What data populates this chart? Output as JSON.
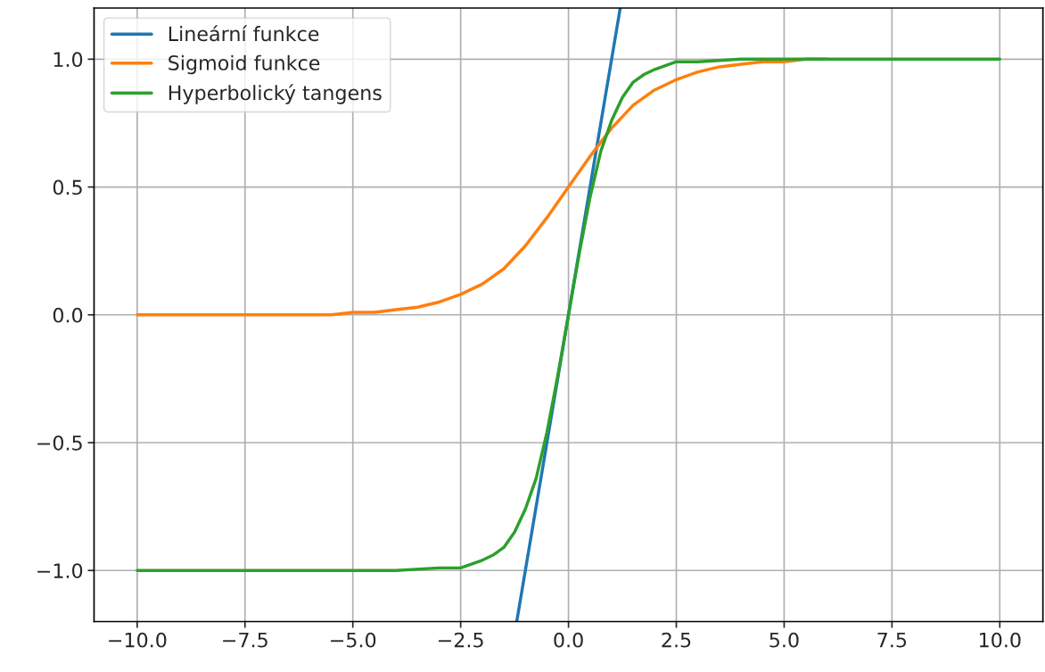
{
  "chart_data": {
    "type": "line",
    "xlim": [
      -11,
      11
    ],
    "ylim": [
      -1.2,
      1.2
    ],
    "xticks": [
      {
        "value": -10,
        "label": "−10.0"
      },
      {
        "value": -7.5,
        "label": "−7.5"
      },
      {
        "value": -5,
        "label": "−5.0"
      },
      {
        "value": -2.5,
        "label": "−2.5"
      },
      {
        "value": 0,
        "label": "0.0"
      },
      {
        "value": 2.5,
        "label": "2.5"
      },
      {
        "value": 5,
        "label": "5.0"
      },
      {
        "value": 7.5,
        "label": "7.5"
      },
      {
        "value": 10,
        "label": "10.0"
      }
    ],
    "yticks": [
      {
        "value": -1,
        "label": "−1.0"
      },
      {
        "value": -0.5,
        "label": "−0.5"
      },
      {
        "value": 0,
        "label": "0.0"
      },
      {
        "value": 0.5,
        "label": "0.5"
      },
      {
        "value": 1,
        "label": "1.0"
      }
    ],
    "grid": true,
    "legend": "top left",
    "line_style": "solid",
    "marker": "none",
    "series": [
      {
        "name": "Lineární funkce",
        "color": "#1f77b4",
        "x": [
          -1.2,
          0,
          1.2
        ],
        "values": [
          -1.2,
          0,
          1.2
        ]
      },
      {
        "name": "Sigmoid funkce",
        "color": "#ff7f0e",
        "x": [
          -10,
          -9,
          -8,
          -7,
          -6,
          -5.5,
          -5,
          -4.5,
          -4,
          -3.5,
          -3,
          -2.5,
          -2,
          -1.5,
          -1,
          -0.5,
          0,
          0.5,
          1,
          1.5,
          2,
          2.5,
          3,
          3.5,
          4,
          4.5,
          5,
          5.5,
          6
        ],
        "values": [
          0.0,
          0.0,
          0.0,
          0.0,
          0.0,
          0.0,
          0.01,
          0.01,
          0.02,
          0.03,
          0.05,
          0.08,
          0.12,
          0.18,
          0.27,
          0.38,
          0.5,
          0.62,
          0.73,
          0.82,
          0.88,
          0.92,
          0.95,
          0.97,
          0.98,
          0.99,
          0.99,
          1.0,
          1.0
        ]
      },
      {
        "name": "Hyperbolický tangens",
        "color": "#2ca02c",
        "x": [
          -10,
          -8,
          -6,
          -4,
          -3,
          -2.5,
          -2,
          -1.75,
          -1.5,
          -1.25,
          -1,
          -0.75,
          -0.5,
          -0.25,
          0,
          0.25,
          0.5,
          0.75,
          1,
          1.25,
          1.5,
          1.75,
          2,
          2.5,
          3,
          4,
          6,
          8,
          10
        ],
        "values": [
          -1.0,
          -1.0,
          -1.0,
          -1.0,
          -0.99,
          -0.99,
          -0.96,
          -0.94,
          -0.91,
          -0.85,
          -0.76,
          -0.64,
          -0.46,
          -0.24,
          0.0,
          0.24,
          0.46,
          0.64,
          0.76,
          0.85,
          0.91,
          0.94,
          0.96,
          0.99,
          0.99,
          1.0,
          1.0,
          1.0,
          1.0
        ]
      }
    ]
  }
}
